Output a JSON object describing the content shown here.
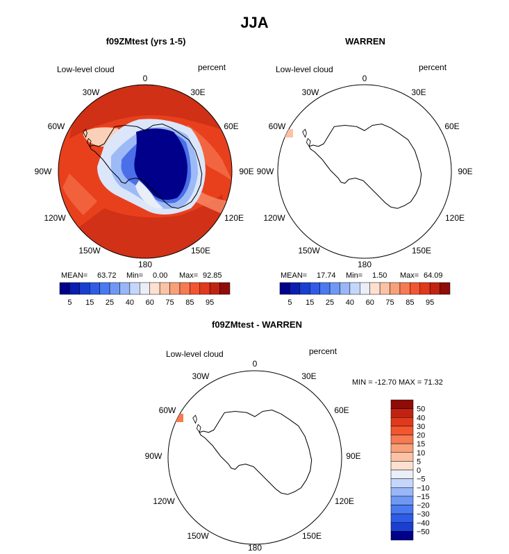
{
  "figure": {
    "title": "JJA",
    "colors": {
      "land": "#e8401d",
      "ice": "#00008b",
      "outline": "#000000"
    }
  },
  "panels": [
    {
      "title": "f09ZMtest (yrs 1-5)",
      "left_label": "Low-level cloud",
      "right_label": "percent",
      "lon_labels": [
        "0",
        "30E",
        "60E",
        "90E",
        "120E",
        "150E",
        "180",
        "150W",
        "120W",
        "90W",
        "60W",
        "30W"
      ],
      "stats": {
        "mean_label": "MEAN=",
        "mean": "63.72",
        "min_label": "Min=",
        "min": "0.00",
        "max_label": "Max=",
        "max": "92.85"
      },
      "colorbar_ticks": [
        "5",
        "15",
        "25",
        "40",
        "60",
        "75",
        "85",
        "95"
      ]
    },
    {
      "title": "WARREN",
      "left_label": "Low-level cloud",
      "right_label": "percent",
      "lon_labels": [
        "0",
        "30E",
        "60E",
        "90E",
        "120E",
        "150E",
        "180",
        "150W",
        "120W",
        "90W",
        "60W",
        "30W"
      ],
      "stats": {
        "mean_label": "MEAN=",
        "mean": "17.74",
        "min_label": "Min=",
        "min": "1.50",
        "max_label": "Max=",
        "max": "64.09"
      },
      "colorbar_ticks": [
        "5",
        "15",
        "25",
        "40",
        "60",
        "75",
        "85",
        "95"
      ]
    },
    {
      "title": "f09ZMtest - WARREN",
      "left_label": "Low-level cloud",
      "right_label": "percent",
      "lon_labels": [
        "0",
        "30E",
        "60E",
        "90E",
        "120E",
        "150E",
        "180",
        "150W",
        "120W",
        "90W",
        "60W",
        "30W"
      ],
      "minmax_text": "MIN = -12.70 MAX =  71.32",
      "colorbar_ticks": [
        "50",
        "40",
        "30",
        "20",
        "15",
        "10",
        "5",
        "0",
        "−5",
        "−10",
        "−15",
        "−20",
        "−30",
        "−40",
        "−50"
      ]
    }
  ],
  "chart_data": [
    {
      "type": "heatmap",
      "title": "f09ZMtest (yrs 1-5)",
      "projection": "south-polar-stereographic",
      "variable": "Low-level cloud",
      "units": "percent",
      "season": "JJA",
      "stats": {
        "mean": 63.72,
        "min": 0.0,
        "max": 92.85
      },
      "colorbar": {
        "levels": [
          5,
          10,
          15,
          20,
          25,
          30,
          40,
          50,
          60,
          70,
          75,
          80,
          85,
          90,
          95
        ],
        "colors": [
          "#00008b",
          "#0a1fb0",
          "#1a3fd0",
          "#2f5ce6",
          "#4a7af0",
          "#6f98f5",
          "#98b6f8",
          "#c4d6fb",
          "#e9eef7",
          "#fde0cf",
          "#fbc2a6",
          "#f8a07a",
          "#f67a52",
          "#f2562e",
          "#e0391c",
          "#c22212",
          "#8f0c08"
        ]
      }
    },
    {
      "type": "heatmap",
      "title": "WARREN",
      "projection": "south-polar-stereographic",
      "variable": "Low-level cloud",
      "units": "percent",
      "season": "JJA",
      "stats": {
        "mean": 17.74,
        "min": 1.5,
        "max": 64.09
      },
      "colorbar": {
        "levels": [
          5,
          10,
          15,
          20,
          25,
          30,
          40,
          50,
          60,
          70,
          75,
          80,
          85,
          90,
          95
        ],
        "colors": [
          "#00008b",
          "#0a1fb0",
          "#1a3fd0",
          "#2f5ce6",
          "#4a7af0",
          "#6f98f5",
          "#98b6f8",
          "#c4d6fb",
          "#e9eef7",
          "#fde0cf",
          "#fbc2a6",
          "#f8a07a",
          "#f67a52",
          "#f2562e",
          "#e0391c",
          "#c22212",
          "#8f0c08"
        ]
      }
    },
    {
      "type": "heatmap",
      "title": "f09ZMtest - WARREN",
      "projection": "south-polar-stereographic",
      "variable": "Low-level cloud",
      "units": "percent",
      "season": "JJA",
      "stats": {
        "min": -12.7,
        "max": 71.32
      },
      "colorbar": {
        "levels": [
          50,
          40,
          30,
          20,
          15,
          10,
          5,
          0,
          -5,
          -10,
          -15,
          -20,
          -30,
          -40,
          -50
        ],
        "colors": [
          "#8f0c08",
          "#c22212",
          "#e0391c",
          "#f2562e",
          "#f67a52",
          "#f8a07a",
          "#fbc2a6",
          "#fde0cf",
          "#e9eef7",
          "#c4d6fb",
          "#98b6f8",
          "#6f98f5",
          "#4a7af0",
          "#2f5ce6",
          "#1a3fd0",
          "#00008b"
        ]
      }
    }
  ]
}
